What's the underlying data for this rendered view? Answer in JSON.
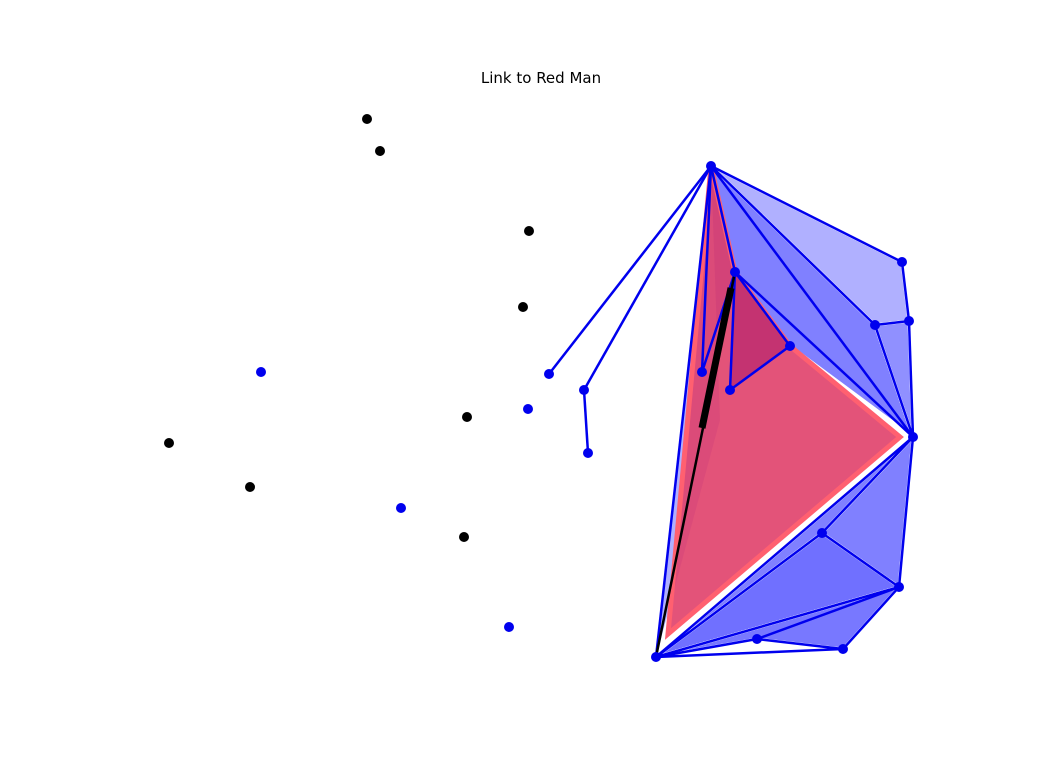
{
  "figure": {
    "title": "Link to Red Man"
  },
  "colors": {
    "background": "#ffffff",
    "primary_blue": "#0000ee",
    "blue_fill_light": "#b0b0ff",
    "blue_fill_mid": "#8080ff",
    "blue_fill_dark": "#6060f0",
    "red_fill": "#e0406a",
    "red_edge": "#ff6070",
    "black_point": "#000000",
    "outline_white": "#ffffff"
  },
  "icons": {
    "black_point_marker": "filled-circle",
    "blue_point_marker": "filled-circle"
  }
}
